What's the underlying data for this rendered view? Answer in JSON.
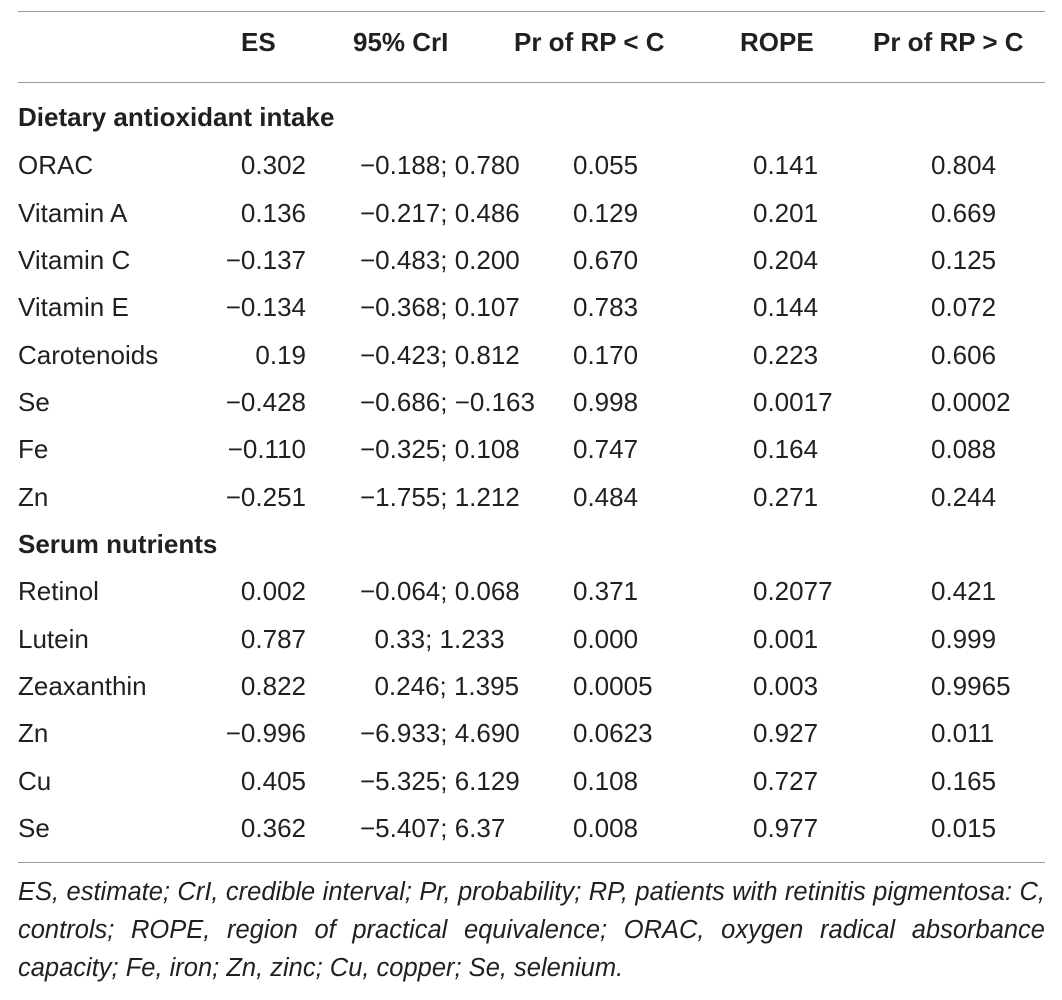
{
  "headers": {
    "es": "ES",
    "cri": "95% CrI",
    "pr_lt": "Pr of RP < C",
    "rope": "ROPE",
    "pr_gt": "Pr of RP > C"
  },
  "sections": [
    {
      "title": "Dietary antioxidant intake",
      "rows": [
        {
          "name": "ORAC",
          "es": "0.302",
          "cri": "−0.188; 0.780",
          "pr_lt": "0.055",
          "rope": "0.141",
          "pr_gt": "0.804"
        },
        {
          "name": "Vitamin A",
          "es": "0.136",
          "cri": "−0.217; 0.486",
          "pr_lt": "0.129",
          "rope": "0.201",
          "pr_gt": "0.669"
        },
        {
          "name": "Vitamin C",
          "es": "−0.137",
          "cri": "−0.483; 0.200",
          "pr_lt": "0.670",
          "rope": "0.204",
          "pr_gt": "0.125"
        },
        {
          "name": "Vitamin E",
          "es": "−0.134",
          "cri": "−0.368; 0.107",
          "pr_lt": "0.783",
          "rope": "0.144",
          "pr_gt": "0.072"
        },
        {
          "name": "Carotenoids",
          "es": "0.19",
          "cri": "−0.423; 0.812",
          "pr_lt": "0.170",
          "rope": "0.223",
          "pr_gt": "0.606"
        },
        {
          "name": "Se",
          "es": "−0.428",
          "cri": "−0.686; −0.163",
          "pr_lt": "0.998",
          "rope": "0.0017",
          "pr_gt": "0.0002"
        },
        {
          "name": "Fe",
          "es": "−0.110",
          "cri": "−0.325; 0.108",
          "pr_lt": "0.747",
          "rope": "0.164",
          "pr_gt": "0.088"
        },
        {
          "name": "Zn",
          "es": "−0.251",
          "cri": "−1.755; 1.212",
          "pr_lt": "0.484",
          "rope": "0.271",
          "pr_gt": "0.244"
        }
      ]
    },
    {
      "title": "Serum nutrients",
      "rows": [
        {
          "name": "Retinol",
          "es": "0.002",
          "cri": "−0.064; 0.068",
          "pr_lt": "0.371",
          "rope": "0.2077",
          "pr_gt": "0.421"
        },
        {
          "name": "Lutein",
          "es": "0.787",
          "cri": " 0.33; 1.233",
          "pr_lt": "0.000",
          "rope": "0.001",
          "pr_gt": "0.999"
        },
        {
          "name": "Zeaxanthin",
          "es": "0.822",
          "cri": " 0.246; 1.395",
          "pr_lt": "0.0005",
          "rope": "0.003",
          "pr_gt": "0.9965"
        },
        {
          "name": "Zn",
          "es": "−0.996",
          "cri": "−6.933; 4.690",
          "pr_lt": "0.0623",
          "rope": "0.927",
          "pr_gt": "0.011"
        },
        {
          "name": "Cu",
          "es": "0.405",
          "cri": "−5.325; 6.129",
          "pr_lt": "0.108",
          "rope": "0.727",
          "pr_gt": "0.165"
        },
        {
          "name": "Se",
          "es": "0.362",
          "cri": "−5.407; 6.37",
          "pr_lt": "0.008",
          "rope": "0.977",
          "pr_gt": "0.015"
        }
      ]
    }
  ],
  "footnote": "ES, estimate; CrI, credible interval; Pr, probability; RP, patients with retinitis pigmentosa: C, controls; ROPE, region of practical equivalence; ORAC, oxygen radical absorbance capacity; Fe, iron; Zn, zinc; Cu, copper; Se, selenium."
}
